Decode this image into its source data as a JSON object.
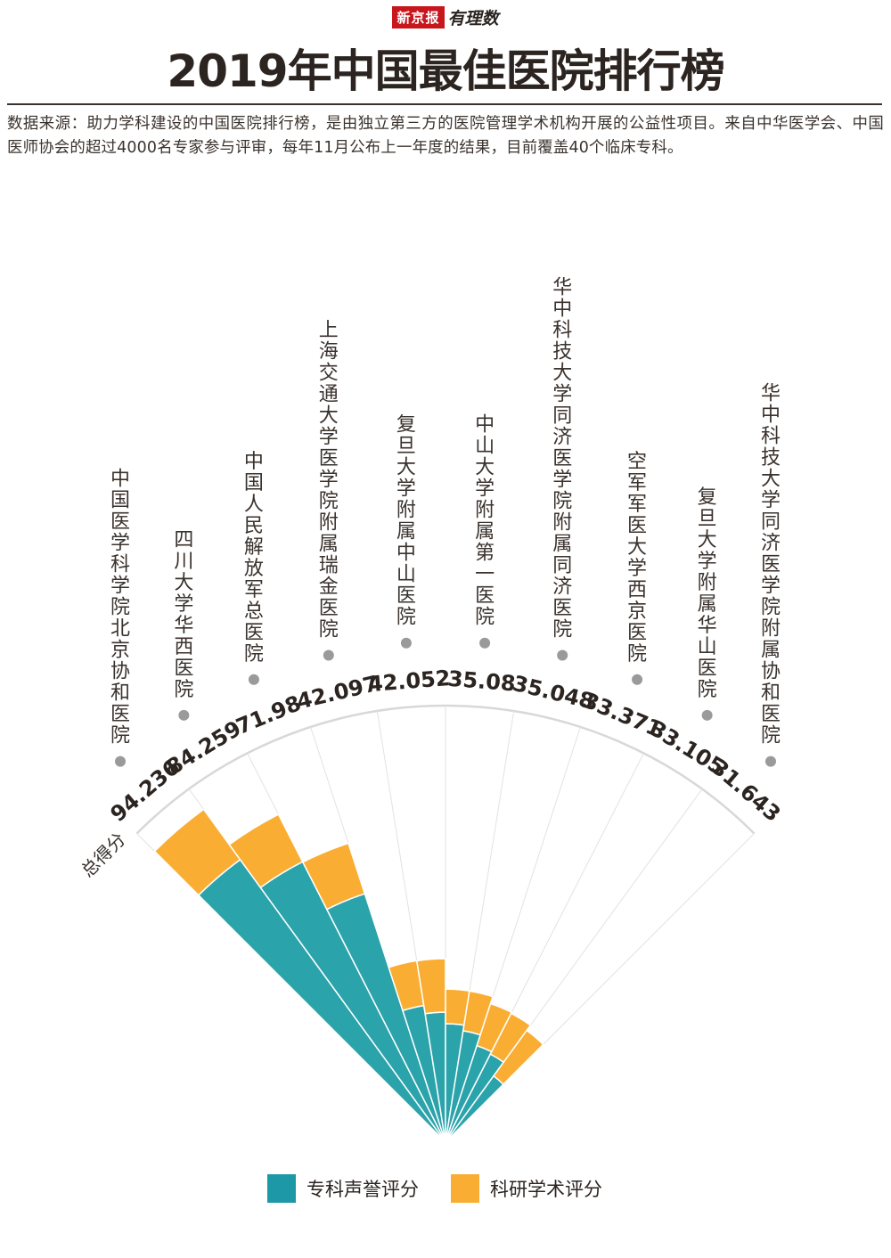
{
  "brand": {
    "name": "新京报",
    "column": "有理数"
  },
  "title": "2019年中国最佳医院排行榜",
  "source_note": "数据来源：助力学科建设的中国医院排行榜，是由独立第三方的医院管理学术机构开展的公益性项目。来自中华医学会、中国医师协会的超过4000名专家参与评审，每年11月公布上一年度的结果，目前覆盖40个临床专科。",
  "chart_data": {
    "type": "radial-stacked-bar",
    "total_label": "总得分",
    "colors": {
      "reputation": "#2ba3ab",
      "research": "#f9ae33"
    },
    "series": [
      {
        "name": "专科声誉评分",
        "key": "reputation",
        "values": [
          80,
          72.1,
          59.85,
          31.7,
          29.8,
          27.15,
          25.85,
          23.25,
          22.65,
          18.75
        ]
      },
      {
        "name": "科研学术评分",
        "key": "research",
        "values": [
          14.236,
          12.159,
          12.13,
          10.397,
          12.252,
          7.93,
          9.198,
          10.121,
          10.455,
          12.893
        ]
      }
    ],
    "categories": [
      "中国医学科学院北京协和医院",
      "四川大学华西医院",
      "中国人民解放军总医院",
      "上海交通大学医学院附属瑞金医院",
      "复旦大学附属中山医院",
      "中山大学附属第一医院",
      "华中科技大学同济医学院附属同济医院",
      "空军军医大学西京医院",
      "复旦大学附属华山医院",
      "华中科技大学同济医学院附属协和医院"
    ],
    "totals": [
      "94.236",
      "84.259",
      "71.98",
      "42.097",
      "42.052",
      "35.08",
      "35.048",
      "33.371",
      "33.105",
      "31.643"
    ],
    "max_value": 100
  }
}
